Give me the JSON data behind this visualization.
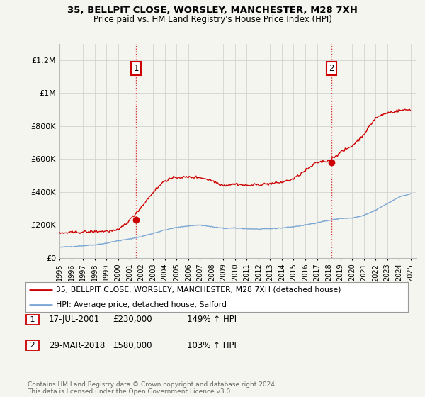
{
  "title_line1": "35, BELLPIT CLOSE, WORSLEY, MANCHESTER, M28 7XH",
  "title_line2": "Price paid vs. HM Land Registry's House Price Index (HPI)",
  "ylim": [
    0,
    1300000
  ],
  "yticks": [
    0,
    200000,
    400000,
    600000,
    800000,
    1000000,
    1200000
  ],
  "ytick_labels": [
    "£0",
    "£200K",
    "£400K",
    "£600K",
    "£800K",
    "£1M",
    "£1.2M"
  ],
  "legend_line1": "35, BELLPIT CLOSE, WORSLEY, MANCHESTER, M28 7XH (detached house)",
  "legend_line2": "HPI: Average price, detached house, Salford",
  "annotation1_num": "1",
  "annotation1_date": "17-JUL-2001",
  "annotation1_price": "£230,000",
  "annotation1_hpi": "149% ↑ HPI",
  "annotation2_num": "2",
  "annotation2_date": "29-MAR-2018",
  "annotation2_price": "£580,000",
  "annotation2_hpi": "103% ↑ HPI",
  "footer": "Contains HM Land Registry data © Crown copyright and database right 2024.\nThis data is licensed under the Open Government Licence v3.0.",
  "line1_color": "#cc0000",
  "line2_color": "#7ba7d4",
  "marker_color": "#cc0000",
  "vline_color": "#cc0000",
  "background_color": "#f5f5f0",
  "plot_bg_color": "#f5f5f0",
  "grid_color": "#cccccc",
  "marker1_x": 2001.54,
  "marker1_y": 230000,
  "marker2_x": 2018.24,
  "marker2_y": 580000,
  "xmin": 1995,
  "xmax": 2025.5,
  "hpi_base_years": [
    1995,
    1996,
    1997,
    1998,
    1999,
    2000,
    2001,
    2002,
    2003,
    2004,
    2005,
    2006,
    2007,
    2008,
    2009,
    2010,
    2011,
    2012,
    2013,
    2014,
    2015,
    2016,
    2017,
    2018,
    2019,
    2020,
    2021,
    2022,
    2023,
    2024,
    2025
  ],
  "hpi_base_vals": [
    65000,
    70000,
    75000,
    80000,
    90000,
    105000,
    115000,
    130000,
    150000,
    170000,
    185000,
    195000,
    200000,
    190000,
    180000,
    182000,
    178000,
    175000,
    178000,
    183000,
    190000,
    200000,
    215000,
    228000,
    240000,
    242000,
    258000,
    290000,
    330000,
    370000,
    390000
  ],
  "prop_base_years": [
    1995,
    1996,
    1997,
    1998,
    1999,
    2000,
    2001,
    2002,
    2003,
    2004,
    2005,
    2006,
    2007,
    2008,
    2009,
    2010,
    2011,
    2012,
    2013,
    2014,
    2015,
    2016,
    2017,
    2018,
    2019,
    2020,
    2021,
    2022,
    2023,
    2024,
    2025
  ],
  "prop_base_vals": [
    150000,
    155000,
    158000,
    160000,
    163000,
    168000,
    230000,
    310000,
    400000,
    470000,
    490000,
    490000,
    490000,
    470000,
    440000,
    450000,
    440000,
    445000,
    450000,
    460000,
    480000,
    530000,
    580000,
    590000,
    640000,
    680000,
    750000,
    850000,
    880000,
    895000,
    900000
  ]
}
